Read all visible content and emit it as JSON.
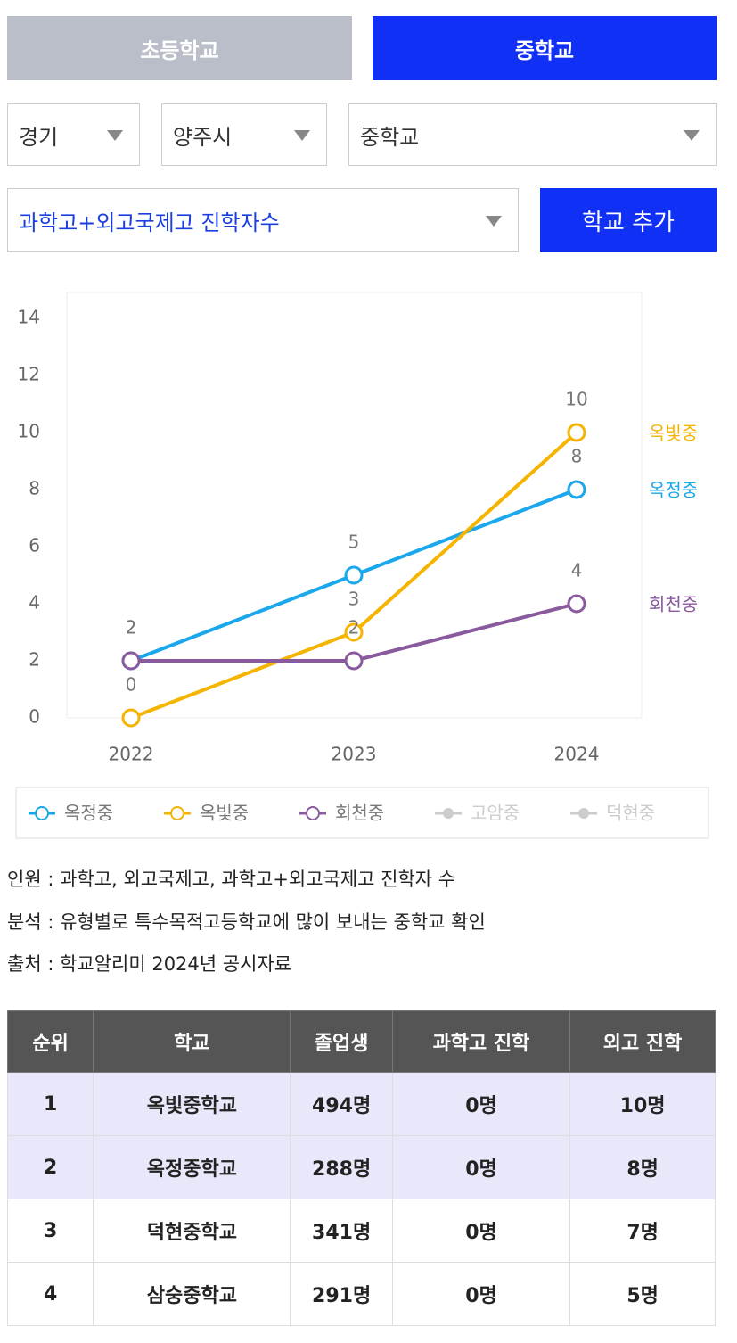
{
  "tabs": [
    {
      "label": "초등학교",
      "active": false
    },
    {
      "label": "중학교",
      "active": true
    }
  ],
  "filters": [
    "경기",
    "양주시",
    "중학교"
  ],
  "metric": "과학고+외고국제고 진학자수",
  "add_button": "학교 추가",
  "chart_data": {
    "type": "line",
    "categories": [
      "2022",
      "2023",
      "2024"
    ],
    "ylim": [
      0,
      14
    ],
    "yticks": [
      0,
      2,
      4,
      6,
      8,
      10,
      12,
      14
    ],
    "series": [
      {
        "name": "옥정중",
        "color": "#1aa7ec",
        "values": [
          2,
          5,
          8
        ]
      },
      {
        "name": "옥빛중",
        "color": "#f5b400",
        "values": [
          0,
          3,
          10
        ]
      },
      {
        "name": "회천중",
        "color": "#8a5a9e",
        "values": [
          2,
          2,
          4
        ]
      },
      {
        "name": "고암중",
        "color": "#cccccc",
        "values": [
          null,
          null,
          null
        ],
        "hidden": true
      },
      {
        "name": "덕현중",
        "color": "#cccccc",
        "values": [
          null,
          null,
          null
        ],
        "hidden": true
      }
    ]
  },
  "notes": [
    "인원 : 과학고, 외고국제고, 과학고+외고국제고 진학자 수",
    "분석 : 유형별로 특수목적고등학교에 많이 보내는 중학교 확인",
    "출처 : 학교알리미 2024년 공시자료"
  ],
  "table": {
    "header": [
      "순위",
      "학교",
      "졸업생",
      "과학고 진학",
      "외고 진학"
    ],
    "rows": [
      [
        "1",
        "옥빛중학교",
        "494명",
        "0명",
        "10명"
      ],
      [
        "2",
        "옥정중학교",
        "288명",
        "0명",
        "8명"
      ],
      [
        "3",
        "덕현중학교",
        "341명",
        "0명",
        "7명"
      ],
      [
        "4",
        "삼숭중학교",
        "291명",
        "0명",
        "5명"
      ]
    ],
    "highlighted_rows": [
      0,
      1
    ]
  }
}
